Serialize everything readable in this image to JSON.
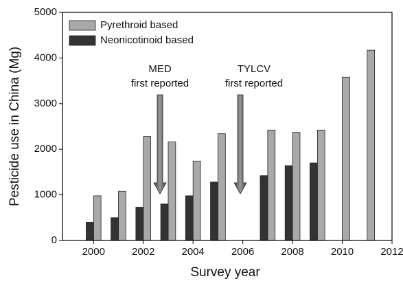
{
  "chart_data": {
    "type": "bar",
    "x_label": "Survey year",
    "y_label": "Pesticide use in China (Mg)",
    "x": [
      2000,
      2001,
      2002,
      2003,
      2004,
      2005,
      2006,
      2007,
      2008,
      2009,
      2010,
      2011
    ],
    "series": [
      {
        "name": "Pyrethroid based",
        "color": "#a9a9a9",
        "values": [
          980,
          1080,
          2280,
          2160,
          1740,
          2340,
          null,
          2420,
          2370,
          2420,
          3580,
          4170
        ]
      },
      {
        "name": "Neonicotinoid based",
        "color": "#333333",
        "values": [
          400,
          500,
          730,
          800,
          980,
          1280,
          null,
          1420,
          1640,
          1700,
          null,
          null
        ]
      }
    ],
    "xlim": [
      1998.75,
      2012
    ],
    "xticks": [
      2000,
      2002,
      2004,
      2006,
      2008,
      2010,
      2012
    ],
    "ylim": [
      0,
      5000
    ],
    "yticks": [
      0,
      1000,
      2000,
      3000,
      4000,
      5000
    ],
    "legend": "upper-left",
    "annotations": [
      [
        "MED",
        "first reported"
      ],
      [
        "TYLCV",
        "first reported"
      ]
    ]
  }
}
